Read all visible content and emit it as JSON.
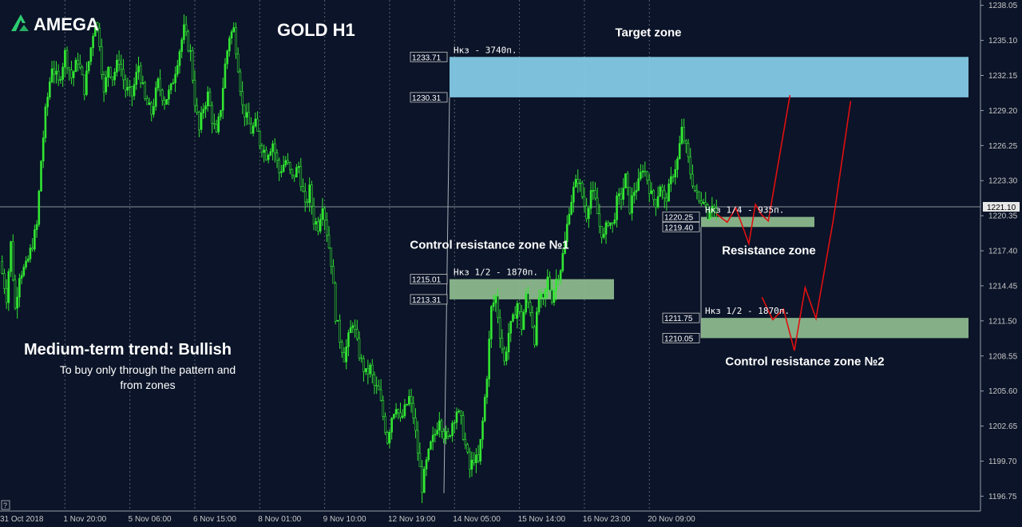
{
  "brand": {
    "name": "AMEGA",
    "logo_color": "#2ecc71"
  },
  "chart_data": {
    "type": "candlestick",
    "title": "GOLD H1",
    "symbol": "GOLD",
    "timeframe": "H1",
    "ylim": [
      1195.5,
      1238.5
    ],
    "y_ticks": [
      "1238.05",
      "1235.10",
      "1232.15",
      "1229.20",
      "1226.25",
      "1223.30",
      "1220.35",
      "1217.40",
      "1214.45",
      "1211.50",
      "1208.55",
      "1205.60",
      "1202.65",
      "1199.70",
      "1196.75"
    ],
    "x_ticks": [
      "31 Oct 2018",
      "1 Nov 20:00",
      "5 Nov 06:00",
      "6 Nov 15:00",
      "8 Nov 01:00",
      "9 Nov 10:00",
      "12 Nov 19:00",
      "14 Nov 05:00",
      "15 Nov 14:00",
      "16 Nov 23:00",
      "20 Nov 09:00"
    ],
    "x_tick_hours": [
      0,
      30,
      60,
      90,
      120,
      150,
      180,
      210,
      240,
      270,
      300
    ],
    "x_range_hours": [
      0,
      453
    ],
    "current_price": "1221.10",
    "grid": "vertical dotted",
    "price_path": [
      [
        0,
        1216.5
      ],
      [
        3,
        1213.5
      ],
      [
        5,
        1218.0
      ],
      [
        7,
        1212.5
      ],
      [
        9,
        1215.5
      ],
      [
        12,
        1216.0
      ],
      [
        15,
        1218.0
      ],
      [
        17,
        1219.5
      ],
      [
        19,
        1225.0
      ],
      [
        21,
        1229.0
      ],
      [
        24,
        1233.0
      ],
      [
        27,
        1231.5
      ],
      [
        30,
        1234.0
      ],
      [
        33,
        1232.0
      ],
      [
        36,
        1233.5
      ],
      [
        39,
        1231.0
      ],
      [
        42,
        1234.5
      ],
      [
        44,
        1237.0
      ],
      [
        46,
        1235.0
      ],
      [
        48,
        1230.5
      ],
      [
        50,
        1233.0
      ],
      [
        52,
        1232.0
      ],
      [
        55,
        1233.5
      ],
      [
        58,
        1231.0
      ],
      [
        61,
        1230.5
      ],
      [
        64,
        1233.0
      ],
      [
        67,
        1230.0
      ],
      [
        70,
        1229.0
      ],
      [
        73,
        1231.5
      ],
      [
        76,
        1230.0
      ],
      [
        79,
        1231.0
      ],
      [
        82,
        1233.5
      ],
      [
        85,
        1236.0
      ],
      [
        88,
        1234.0
      ],
      [
        90,
        1230.0
      ],
      [
        92,
        1227.5
      ],
      [
        94,
        1229.5
      ],
      [
        96,
        1230.5
      ],
      [
        98,
        1228.5
      ],
      [
        100,
        1227.0
      ],
      [
        102,
        1229.5
      ],
      [
        104,
        1233.0
      ],
      [
        106,
        1235.5
      ],
      [
        108,
        1236.0
      ],
      [
        110,
        1233.0
      ],
      [
        112,
        1229.5
      ],
      [
        114,
        1228.5
      ],
      [
        116,
        1227.5
      ],
      [
        118,
        1228.0
      ],
      [
        120,
        1226.5
      ],
      [
        123,
        1225.5
      ],
      [
        126,
        1226.5
      ],
      [
        129,
        1224.0
      ],
      [
        132,
        1225.0
      ],
      [
        135,
        1223.5
      ],
      [
        138,
        1224.5
      ],
      [
        141,
        1221.0
      ],
      [
        143,
        1222.5
      ],
      [
        145,
        1220.0
      ],
      [
        147,
        1219.5
      ],
      [
        149,
        1221.5
      ],
      [
        151,
        1219.0
      ],
      [
        153,
        1216.5
      ],
      [
        155,
        1212.0
      ],
      [
        157,
        1210.0
      ],
      [
        159,
        1208.5
      ],
      [
        161,
        1210.0
      ],
      [
        163,
        1211.5
      ],
      [
        165,
        1209.5
      ],
      [
        167,
        1208.0
      ],
      [
        169,
        1207.0
      ],
      [
        171,
        1207.5
      ],
      [
        173,
        1206.0
      ],
      [
        175,
        1205.5
      ],
      [
        177,
        1203.5
      ],
      [
        179,
        1201.5
      ],
      [
        181,
        1203.5
      ],
      [
        183,
        1204.5
      ],
      [
        185,
        1203.0
      ],
      [
        187,
        1204.0
      ],
      [
        189,
        1205.0
      ],
      [
        191,
        1203.5
      ],
      [
        193,
        1200.5
      ],
      [
        195,
        1197.5
      ],
      [
        197,
        1199.5
      ],
      [
        199,
        1201.0
      ],
      [
        201,
        1202.0
      ],
      [
        203,
        1203.5
      ],
      [
        205,
        1202.0
      ],
      [
        207,
        1201.5
      ],
      [
        209,
        1203.0
      ],
      [
        211,
        1204.0
      ],
      [
        213,
        1203.0
      ],
      [
        215,
        1201.0
      ],
      [
        217,
        1199.0
      ],
      [
        219,
        1200.0
      ],
      [
        221,
        1199.5
      ],
      [
        223,
        1203.0
      ],
      [
        225,
        1207.0
      ],
      [
        227,
        1212.5
      ],
      [
        229,
        1213.5
      ],
      [
        231,
        1210.5
      ],
      [
        233,
        1208.0
      ],
      [
        235,
        1210.5
      ],
      [
        237,
        1211.5
      ],
      [
        239,
        1213.0
      ],
      [
        241,
        1211.0
      ],
      [
        243,
        1213.5
      ],
      [
        245,
        1212.5
      ],
      [
        247,
        1210.0
      ],
      [
        249,
        1213.5
      ],
      [
        251,
        1213.0
      ],
      [
        253,
        1215.0
      ],
      [
        255,
        1213.5
      ],
      [
        257,
        1215.0
      ],
      [
        259,
        1216.0
      ],
      [
        261,
        1218.0
      ],
      [
        263,
        1221.0
      ],
      [
        265,
        1222.5
      ],
      [
        267,
        1223.5
      ],
      [
        269,
        1222.0
      ],
      [
        271,
        1220.5
      ],
      [
        273,
        1222.5
      ],
      [
        275,
        1221.5
      ],
      [
        277,
        1219.5
      ],
      [
        279,
        1218.5
      ],
      [
        281,
        1220.0
      ],
      [
        283,
        1219.5
      ],
      [
        285,
        1221.5
      ],
      [
        287,
        1222.0
      ],
      [
        289,
        1223.5
      ],
      [
        291,
        1221.0
      ],
      [
        293,
        1222.5
      ],
      [
        295,
        1223.0
      ],
      [
        297,
        1224.5
      ],
      [
        299,
        1223.5
      ],
      [
        301,
        1222.0
      ],
      [
        303,
        1221.5
      ],
      [
        305,
        1223.0
      ],
      [
        307,
        1221.5
      ],
      [
        309,
        1222.5
      ],
      [
        311,
        1224.0
      ],
      [
        313,
        1225.0
      ],
      [
        315,
        1227.5
      ],
      [
        317,
        1226.0
      ],
      [
        319,
        1224.0
      ],
      [
        321,
        1222.5
      ],
      [
        323,
        1221.5
      ],
      [
        325,
        1222.0
      ],
      [
        327,
        1220.5
      ],
      [
        329,
        1221.5
      ],
      [
        331,
        1220.5
      ]
    ],
    "zones": [
      {
        "name": "target",
        "label": "Target zone",
        "low": 1230.31,
        "high": 1233.71,
        "low_label": "1230.31",
        "high_label": "1233.71",
        "note": "Нкз - 3740п.",
        "color": "#87ceeb"
      },
      {
        "name": "control-1",
        "label": "Control resistance zone №1",
        "low": 1213.31,
        "high": 1215.01,
        "low_label": "1213.31",
        "high_label": "1215.01",
        "note": "Нкз 1/2 - 1870п.",
        "color": "#8fbc8f"
      },
      {
        "name": "resistance",
        "label": "Resistance zone",
        "low": 1219.4,
        "high": 1220.25,
        "low_label": "1219.40",
        "high_label": "1220.25",
        "note": "Нкз 1/4 - 935п.",
        "color": "#8fbc8f"
      },
      {
        "name": "control-2",
        "label": "Control resistance zone №2",
        "low": 1210.05,
        "high": 1211.75,
        "low_label": "1210.05",
        "high_label": "1211.75",
        "note": "Нкз 1/2 - 1870п.",
        "color": "#8fbc8f"
      }
    ],
    "forecast_paths": [
      [
        [
          331,
          1220.5
        ],
        [
          336,
          1219.8
        ],
        [
          340,
          1221.0
        ],
        [
          343,
          1219.5
        ],
        [
          346,
          1218.0
        ],
        [
          349,
          1221.3
        ],
        [
          352,
          1220.4
        ],
        [
          355,
          1219.9
        ],
        [
          365,
          1230.5
        ]
      ],
      [
        [
          352,
          1213.5
        ],
        [
          357,
          1211.6
        ],
        [
          362,
          1212.5
        ],
        [
          367,
          1209.0
        ],
        [
          372,
          1214.3
        ],
        [
          377,
          1211.7
        ],
        [
          385,
          1220.0
        ],
        [
          393,
          1230.0
        ]
      ]
    ],
    "annotations": {
      "trend_title": "Medium-term trend: Bullish",
      "trend_note_line1": "To buy only through the pattern  and",
      "trend_note_line2": "from zones"
    },
    "colors": {
      "background": "#0b1428",
      "candle": "#32e632",
      "forecast": "#e01010",
      "axis_text": "#c8c8c8",
      "grid": "#5a6274"
    }
  }
}
